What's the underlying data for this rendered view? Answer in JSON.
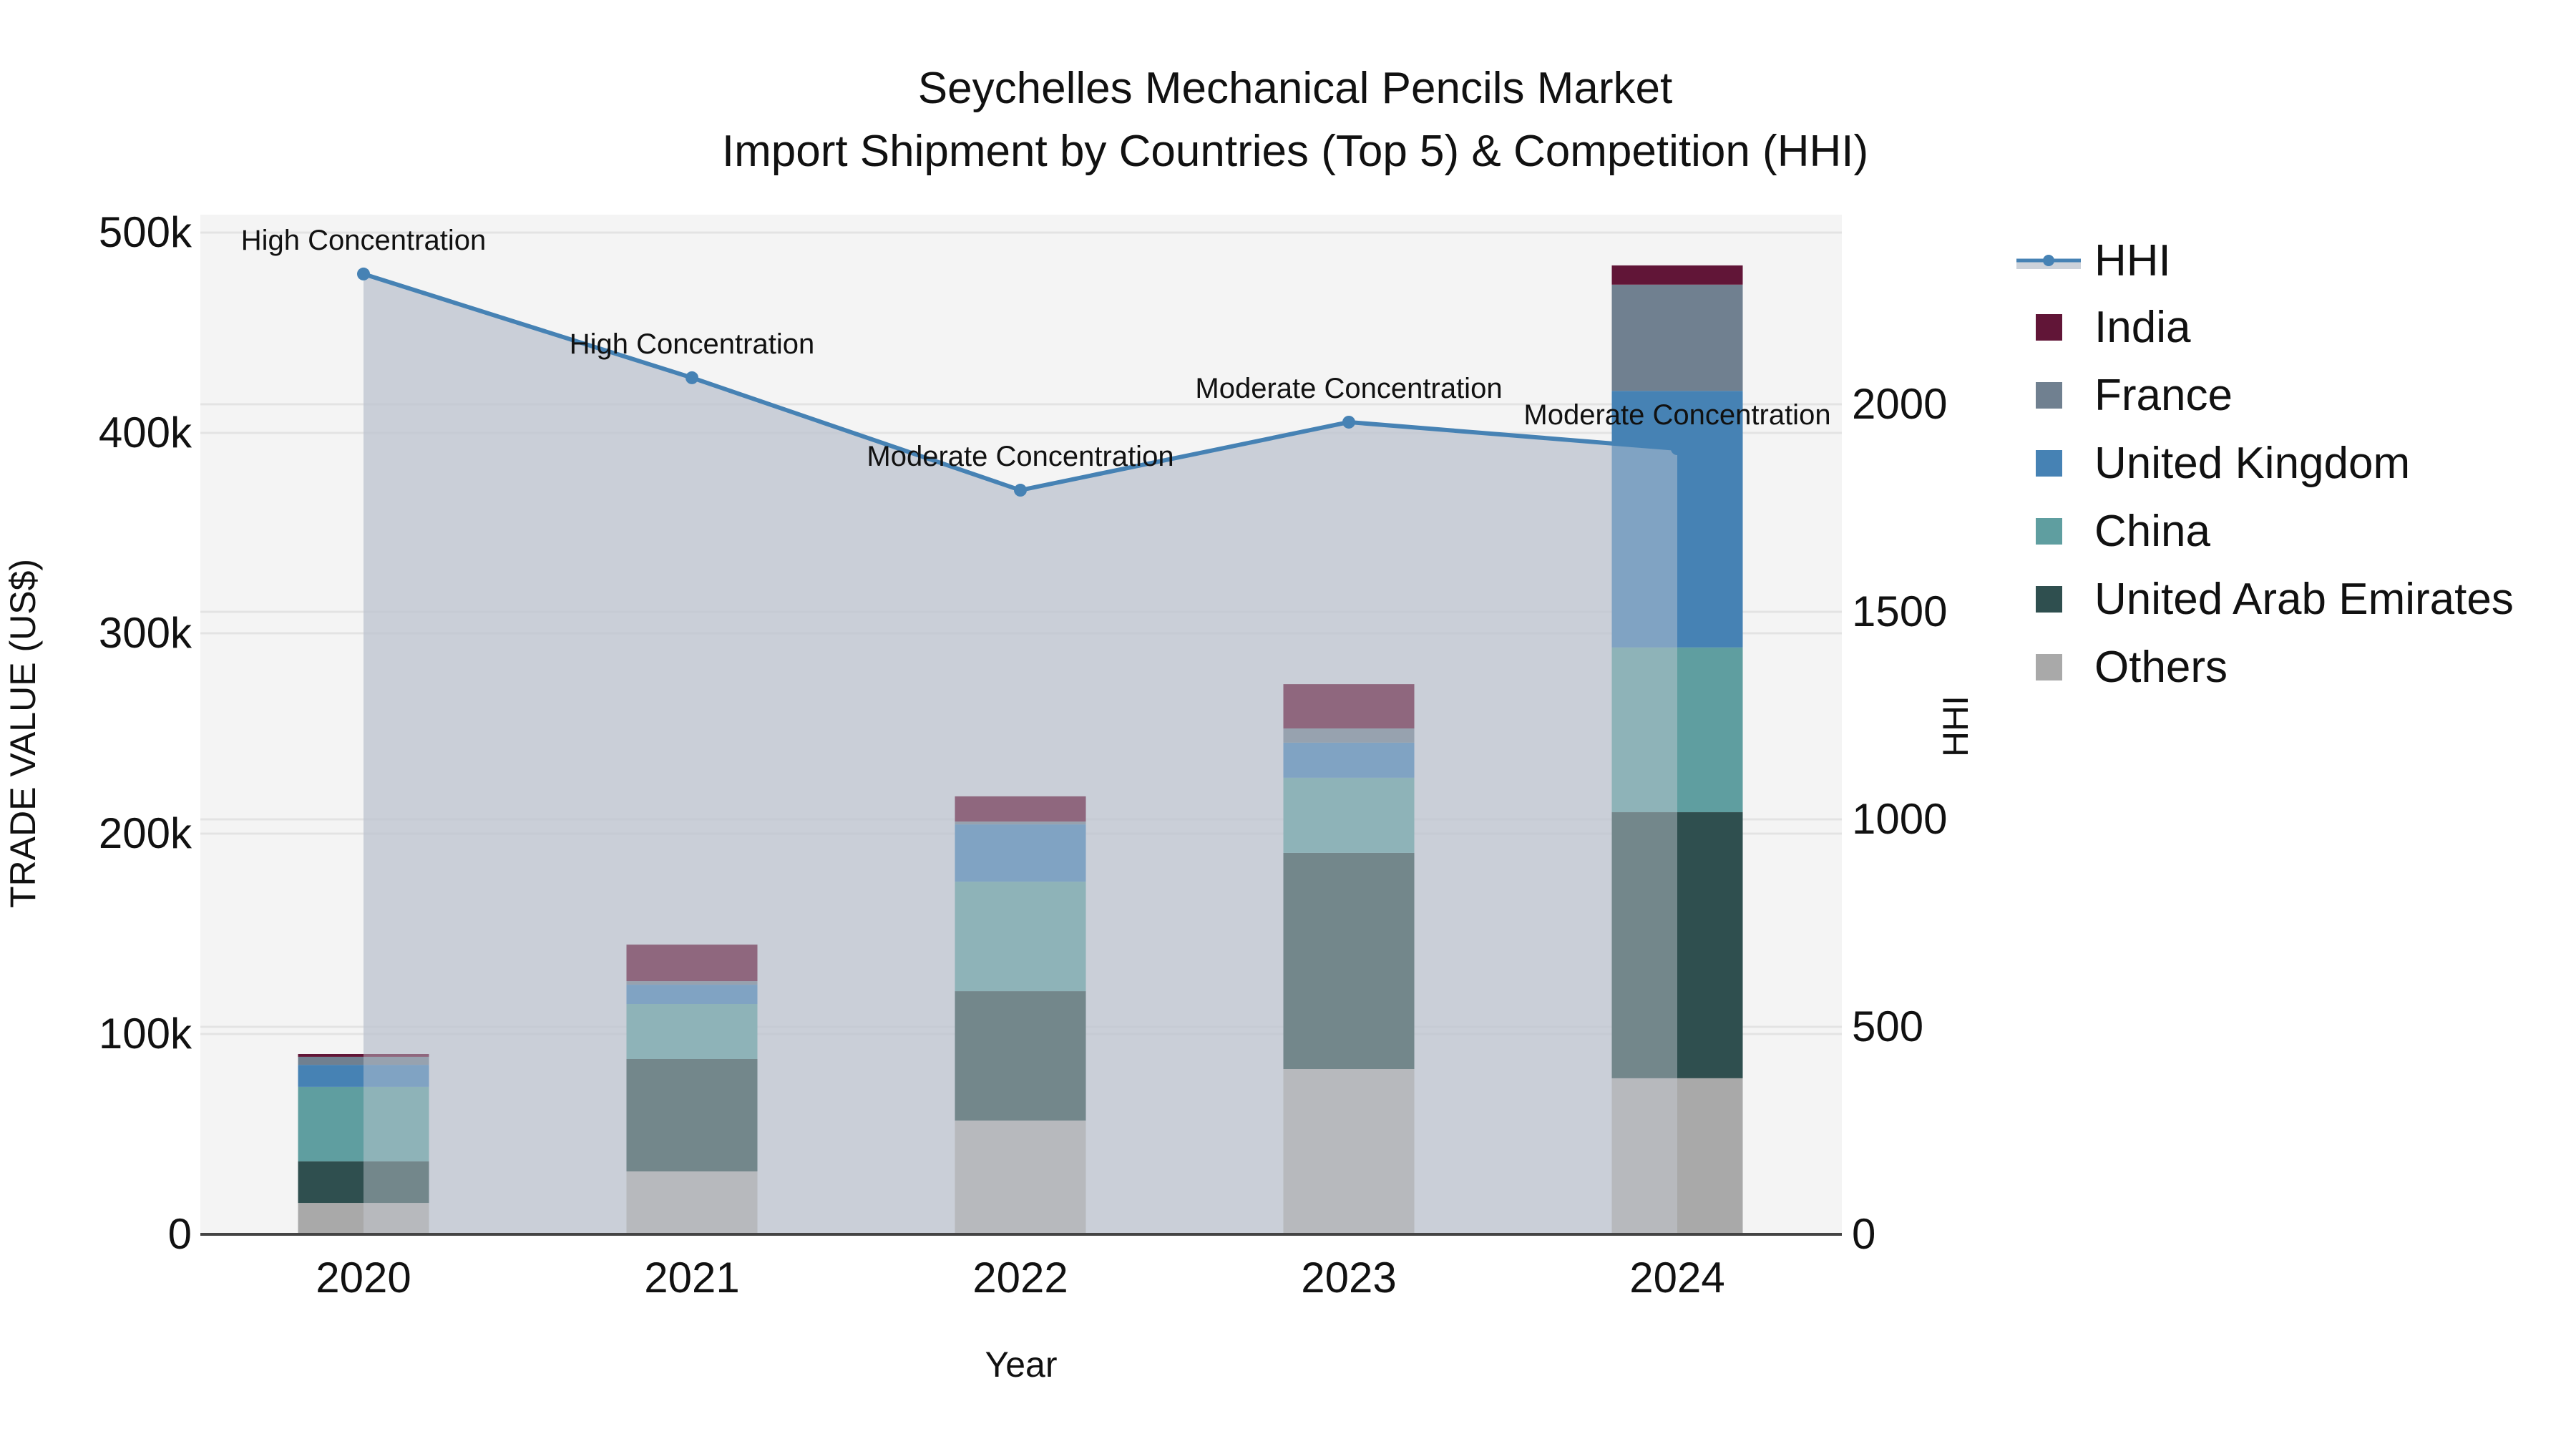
{
  "title": {
    "line1": "Seychelles Mechanical Pencils Market",
    "line2": "Import Shipment by Countries (Top 5) & Competition (HHI)"
  },
  "axes": {
    "x_title": "Year",
    "y_title": "TRADE VALUE (US$)",
    "y2_title": "HHI",
    "y_ticks": [
      "0",
      "100k",
      "200k",
      "300k",
      "400k",
      "500k"
    ],
    "y2_ticks": [
      "0",
      "500",
      "1000",
      "1500",
      "2000"
    ]
  },
  "legend": {
    "items": [
      {
        "label": "HHI",
        "color": "#4682b4",
        "kind": "line"
      },
      {
        "label": "India",
        "color": "#611537",
        "kind": "bar"
      },
      {
        "label": "France",
        "color": "#708090",
        "kind": "bar"
      },
      {
        "label": "United Kingdom",
        "color": "#4682b4",
        "kind": "bar"
      },
      {
        "label": "China",
        "color": "#5f9ea0",
        "kind": "bar"
      },
      {
        "label": "United Arab Emirates",
        "color": "#2f4f4f",
        "kind": "bar"
      },
      {
        "label": "Others",
        "color": "#a9a9a9",
        "kind": "bar"
      }
    ]
  },
  "chart_data": {
    "type": "bar",
    "stacked": true,
    "title": "Seychelles Mechanical Pencils Market — Import Shipment by Countries (Top 5) & Competition (HHI)",
    "xlabel": "Year",
    "ylabel": "TRADE VALUE (US$)",
    "y2label": "HHI",
    "ylim": [
      0,
      510000
    ],
    "y2lim": [
      0,
      2460
    ],
    "grid": true,
    "legend_position": "right",
    "categories": [
      "2020",
      "2021",
      "2022",
      "2023",
      "2024"
    ],
    "series": [
      {
        "name": "Others",
        "color": "#a9a9a9",
        "values": [
          15700,
          31400,
          56800,
          82500,
          77900
        ]
      },
      {
        "name": "United Arab Emirates",
        "color": "#2f4f4f",
        "values": [
          20700,
          56100,
          64600,
          107900,
          132800
        ]
      },
      {
        "name": "China",
        "color": "#5f9ea0",
        "values": [
          37200,
          27500,
          54600,
          37500,
          82200
        ]
      },
      {
        "name": "United Kingdom",
        "color": "#4682b4",
        "values": [
          11000,
          9600,
          28600,
          17500,
          128100
        ]
      },
      {
        "name": "France",
        "color": "#708090",
        "values": [
          4000,
          1800,
          1400,
          7100,
          53000
        ]
      },
      {
        "name": "India",
        "color": "#611537",
        "values": [
          1400,
          18200,
          12600,
          22100,
          9600
        ]
      }
    ],
    "line_series": {
      "name": "HHI",
      "axis": "y2",
      "type": "line+area",
      "color": "#4682b4",
      "values": [
        2314,
        2064,
        1793,
        1957,
        1893
      ],
      "annotations": [
        "High Concentration",
        "High Concentration",
        "Moderate Concentration",
        "Moderate Concentration",
        "Moderate Concentration"
      ]
    }
  }
}
